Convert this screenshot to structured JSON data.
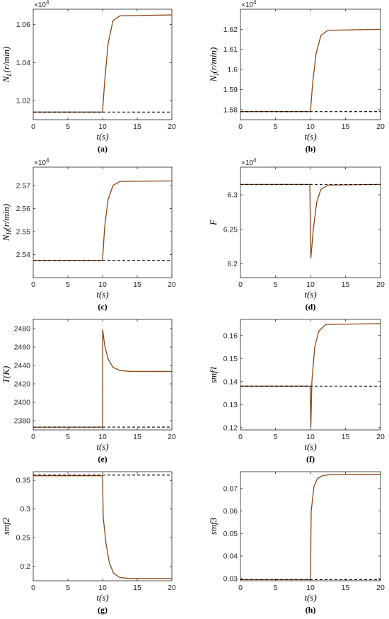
{
  "colors": {
    "response": "#8b4513",
    "reference": "#000000"
  },
  "chart_data": [
    {
      "type": "line",
      "caption": "(a)",
      "xlabel": "t(s)",
      "ylabel": "N_L(r/min)",
      "multiplier_base": "×10",
      "multiplier_exp": "4",
      "xlim": [
        0,
        20
      ],
      "xticks": [
        "0",
        "5",
        "10",
        "15",
        "20"
      ],
      "ylim": [
        1.01,
        1.068
      ],
      "yticks": [
        "1.02",
        "1.04",
        "1.06"
      ],
      "series": [
        {
          "style": "solid",
          "points": [
            [
              0,
              1.014
            ],
            [
              10,
              1.014
            ],
            [
              10.3,
              1.03
            ],
            [
              10.8,
              1.05
            ],
            [
              11.5,
              1.062
            ],
            [
              12.5,
              1.0645
            ],
            [
              20,
              1.065
            ]
          ]
        },
        {
          "style": "dashed",
          "points": [
            [
              0,
              1.014
            ],
            [
              20,
              1.014
            ]
          ]
        }
      ]
    },
    {
      "type": "line",
      "caption": "(b)",
      "xlabel": "t(s)",
      "ylabel": "N_I(r/min)",
      "multiplier_base": "×10",
      "multiplier_exp": "4",
      "xlim": [
        0,
        20
      ],
      "xticks": [
        "0",
        "5",
        "10",
        "15",
        "20"
      ],
      "ylim": [
        1.575,
        1.63
      ],
      "yticks": [
        "1.58",
        "1.59",
        "1.6",
        "1.61",
        "1.62"
      ],
      "series": [
        {
          "style": "solid",
          "points": [
            [
              0,
              1.579
            ],
            [
              10,
              1.579
            ],
            [
              10.3,
              1.593
            ],
            [
              10.8,
              1.608
            ],
            [
              11.5,
              1.617
            ],
            [
              12.5,
              1.6195
            ],
            [
              20,
              1.62
            ]
          ]
        },
        {
          "style": "dashed",
          "points": [
            [
              0,
              1.579
            ],
            [
              20,
              1.579
            ]
          ]
        }
      ]
    },
    {
      "type": "line",
      "caption": "(c)",
      "xlabel": "t(s)",
      "ylabel": "N_H(r/min)",
      "multiplier_base": "×10",
      "multiplier_exp": "4",
      "xlim": [
        0,
        20
      ],
      "xticks": [
        "0",
        "5",
        "10",
        "15",
        "20"
      ],
      "ylim": [
        2.53,
        2.578
      ],
      "yticks": [
        "2.54",
        "2.55",
        "2.56",
        "2.57"
      ],
      "series": [
        {
          "style": "solid",
          "points": [
            [
              0,
              2.5375
            ],
            [
              10,
              2.5375
            ],
            [
              10.3,
              2.552
            ],
            [
              10.8,
              2.564
            ],
            [
              11.5,
              2.57
            ],
            [
              12.5,
              2.5718
            ],
            [
              20,
              2.572
            ]
          ]
        },
        {
          "style": "dashed",
          "points": [
            [
              0,
              2.5375
            ],
            [
              20,
              2.5375
            ]
          ]
        }
      ]
    },
    {
      "type": "line",
      "caption": "(d)",
      "xlabel": "t(s)",
      "ylabel": "F",
      "multiplier_base": "×10",
      "multiplier_exp": "4",
      "xlim": [
        0,
        20
      ],
      "xticks": [
        "0",
        "5",
        "10",
        "15",
        "20"
      ],
      "ylim": [
        6.18,
        6.34
      ],
      "yticks": [
        "6.2",
        "6.25",
        "6.3"
      ],
      "series": [
        {
          "style": "solid",
          "points": [
            [
              0,
              6.315
            ],
            [
              9.9,
              6.315
            ],
            [
              10.05,
              6.208
            ],
            [
              10.4,
              6.25
            ],
            [
              10.9,
              6.29
            ],
            [
              11.5,
              6.308
            ],
            [
              12.5,
              6.314
            ],
            [
              20,
              6.315
            ]
          ]
        },
        {
          "style": "dashed",
          "points": [
            [
              0,
              6.315
            ],
            [
              20,
              6.315
            ]
          ]
        }
      ]
    },
    {
      "type": "line",
      "caption": "(e)",
      "xlabel": "t(s)",
      "ylabel": "T(K)",
      "multiplier_base": "",
      "multiplier_exp": "",
      "xlim": [
        0,
        20
      ],
      "xticks": [
        "0",
        "5",
        "10",
        "15",
        "20"
      ],
      "ylim": [
        2370,
        2490
      ],
      "yticks": [
        "2380",
        "2400",
        "2420",
        "2440",
        "2460",
        "2480"
      ],
      "series": [
        {
          "style": "solid",
          "points": [
            [
              0,
              2373
            ],
            [
              10,
              2373
            ],
            [
              10.02,
              2479
            ],
            [
              10.3,
              2462
            ],
            [
              10.8,
              2447
            ],
            [
              11.5,
              2438
            ],
            [
              12.5,
              2434.5
            ],
            [
              14,
              2433.5
            ],
            [
              20,
              2433.5
            ]
          ]
        },
        {
          "style": "dashed",
          "points": [
            [
              0,
              2373
            ],
            [
              20,
              2373
            ]
          ]
        }
      ]
    },
    {
      "type": "line",
      "caption": "(f)",
      "xlabel": "t(s)",
      "ylabel": "smf1",
      "multiplier_base": "",
      "multiplier_exp": "",
      "xlim": [
        0,
        20
      ],
      "xticks": [
        "0",
        "5",
        "10",
        "15",
        "20"
      ],
      "ylim": [
        0.119,
        0.167
      ],
      "yticks": [
        "0.12",
        "0.13",
        "0.14",
        "0.15",
        "0.16"
      ],
      "series": [
        {
          "style": "solid",
          "points": [
            [
              0,
              0.138
            ],
            [
              9.95,
              0.138
            ],
            [
              10.05,
              0.12
            ],
            [
              10.2,
              0.14
            ],
            [
              10.6,
              0.155
            ],
            [
              11.2,
              0.162
            ],
            [
              12.2,
              0.1648
            ],
            [
              20,
              0.1652
            ]
          ]
        },
        {
          "style": "dashed",
          "points": [
            [
              0,
              0.138
            ],
            [
              20,
              0.138
            ]
          ]
        }
      ]
    },
    {
      "type": "line",
      "caption": "(g)",
      "xlabel": "t(s)",
      "ylabel": "smf2",
      "multiplier_base": "",
      "multiplier_exp": "",
      "xlim": [
        0,
        20
      ],
      "xticks": [
        "0",
        "5",
        "10",
        "15",
        "20"
      ],
      "ylim": [
        0.175,
        0.365
      ],
      "yticks": [
        "0.2",
        "0.25",
        "0.3",
        "0.35"
      ],
      "series": [
        {
          "style": "solid",
          "points": [
            [
              0,
              0.358
            ],
            [
              10,
              0.358
            ],
            [
              10.1,
              0.285
            ],
            [
              10.5,
              0.24
            ],
            [
              11.0,
              0.205
            ],
            [
              11.6,
              0.188
            ],
            [
              12.5,
              0.1805
            ],
            [
              14,
              0.179
            ],
            [
              20,
              0.179
            ]
          ]
        },
        {
          "style": "dashed",
          "points": [
            [
              0,
              0.359
            ],
            [
              20,
              0.359
            ]
          ]
        }
      ]
    },
    {
      "type": "line",
      "caption": "(h)",
      "xlabel": "t(s)",
      "ylabel": "smf3",
      "multiplier_base": "",
      "multiplier_exp": "",
      "xlim": [
        0,
        20
      ],
      "xticks": [
        "0",
        "5",
        "10",
        "15",
        "20"
      ],
      "ylim": [
        0.029,
        0.0775
      ],
      "yticks": [
        "0.03",
        "0.04",
        "0.05",
        "0.06",
        "0.07"
      ],
      "series": [
        {
          "style": "solid",
          "points": [
            [
              0,
              0.0295
            ],
            [
              10,
              0.0295
            ],
            [
              10.1,
              0.06
            ],
            [
              10.5,
              0.071
            ],
            [
              11.0,
              0.0745
            ],
            [
              11.8,
              0.0758
            ],
            [
              13,
              0.0762
            ],
            [
              20,
              0.0763
            ]
          ]
        },
        {
          "style": "dashed",
          "points": [
            [
              0,
              0.0295
            ],
            [
              20,
              0.0295
            ]
          ]
        }
      ]
    }
  ]
}
